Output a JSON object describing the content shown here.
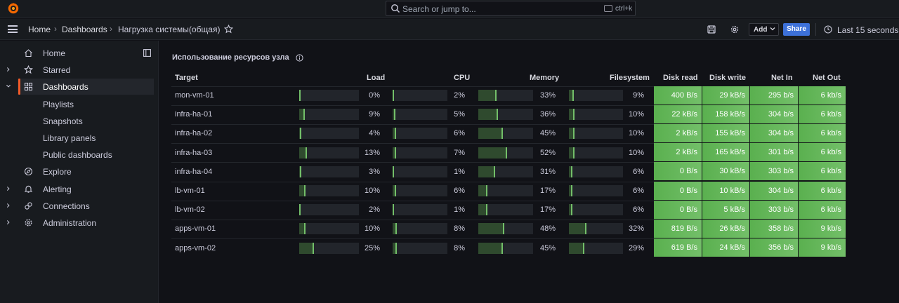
{
  "search": {
    "placeholder": "Search or jump to...",
    "shortcut": "ctrl+k"
  },
  "breadcrumb": {
    "home": "Home",
    "dashboards": "Dashboards",
    "current": "Нагрузка системы(общая)"
  },
  "toolbar": {
    "add_label": "Add",
    "share_label": "Share",
    "time_range": "Last 15 seconds"
  },
  "sidebar": {
    "items": [
      {
        "label": "Home",
        "icon": "home-icon",
        "expandable": false
      },
      {
        "label": "Starred",
        "icon": "star-icon",
        "expandable": true
      },
      {
        "label": "Dashboards",
        "icon": "apps-icon",
        "expandable": true,
        "active": true
      },
      {
        "label": "Playlists",
        "sub": true
      },
      {
        "label": "Snapshots",
        "sub": true
      },
      {
        "label": "Library panels",
        "sub": true
      },
      {
        "label": "Public dashboards",
        "sub": true
      },
      {
        "label": "Explore",
        "icon": "compass-icon",
        "expandable": false
      },
      {
        "label": "Alerting",
        "icon": "bell-icon",
        "expandable": true
      },
      {
        "label": "Connections",
        "icon": "link-icon",
        "expandable": true
      },
      {
        "label": "Administration",
        "icon": "cog-icon",
        "expandable": true
      }
    ]
  },
  "panel": {
    "title": "Использование ресурсов узла",
    "columns": [
      "Target",
      "Load",
      "CPU",
      "Memory",
      "Filesystem",
      "Disk read",
      "Disk write",
      "Net In",
      "Net Out"
    ],
    "rows": [
      {
        "target": "mon-vm-01",
        "load": "0%",
        "load_v": 0.0,
        "cpu": "2%",
        "cpu_v": 0.02,
        "mem": "33%",
        "mem_v": 0.33,
        "fs": "9%",
        "fs_v": 0.09,
        "disk_read": "400 B/s",
        "disk_write": "29 kB/s",
        "net_in": "295 b/s",
        "net_out": "6 kb/s"
      },
      {
        "target": "infra-ha-01",
        "load": "9%",
        "load_v": 0.09,
        "cpu": "5%",
        "cpu_v": 0.05,
        "mem": "36%",
        "mem_v": 0.36,
        "fs": "10%",
        "fs_v": 0.1,
        "disk_read": "22 kB/s",
        "disk_write": "158 kB/s",
        "net_in": "304 b/s",
        "net_out": "6 kb/s"
      },
      {
        "target": "infra-ha-02",
        "load": "4%",
        "load_v": 0.04,
        "cpu": "6%",
        "cpu_v": 0.06,
        "mem": "45%",
        "mem_v": 0.45,
        "fs": "10%",
        "fs_v": 0.1,
        "disk_read": "2 kB/s",
        "disk_write": "155 kB/s",
        "net_in": "304 b/s",
        "net_out": "6 kb/s"
      },
      {
        "target": "infra-ha-03",
        "load": "13%",
        "load_v": 0.13,
        "cpu": "7%",
        "cpu_v": 0.07,
        "mem": "52%",
        "mem_v": 0.52,
        "fs": "10%",
        "fs_v": 0.1,
        "disk_read": "2 kB/s",
        "disk_write": "165 kB/s",
        "net_in": "301 b/s",
        "net_out": "6 kb/s"
      },
      {
        "target": "infra-ha-04",
        "load": "3%",
        "load_v": 0.03,
        "cpu": "1%",
        "cpu_v": 0.01,
        "mem": "31%",
        "mem_v": 0.31,
        "fs": "6%",
        "fs_v": 0.06,
        "disk_read": "0 B/s",
        "disk_write": "30 kB/s",
        "net_in": "303 b/s",
        "net_out": "6 kb/s"
      },
      {
        "target": "lb-vm-01",
        "load": "10%",
        "load_v": 0.1,
        "cpu": "6%",
        "cpu_v": 0.06,
        "mem": "17%",
        "mem_v": 0.17,
        "fs": "6%",
        "fs_v": 0.06,
        "disk_read": "0 B/s",
        "disk_write": "10 kB/s",
        "net_in": "304 b/s",
        "net_out": "6 kb/s"
      },
      {
        "target": "lb-vm-02",
        "load": "2%",
        "load_v": 0.02,
        "cpu": "1%",
        "cpu_v": 0.01,
        "mem": "17%",
        "mem_v": 0.17,
        "fs": "6%",
        "fs_v": 0.06,
        "disk_read": "0 B/s",
        "disk_write": "5 kB/s",
        "net_in": "303 b/s",
        "net_out": "6 kb/s"
      },
      {
        "target": "apps-vm-01",
        "load": "10%",
        "load_v": 0.1,
        "cpu": "8%",
        "cpu_v": 0.08,
        "mem": "48%",
        "mem_v": 0.48,
        "fs": "32%",
        "fs_v": 0.32,
        "disk_read": "819 B/s",
        "disk_write": "26 kB/s",
        "net_in": "358 b/s",
        "net_out": "9 kb/s"
      },
      {
        "target": "apps-vm-02",
        "load": "25%",
        "load_v": 0.25,
        "cpu": "8%",
        "cpu_v": 0.08,
        "mem": "45%",
        "mem_v": 0.45,
        "fs": "29%",
        "fs_v": 0.29,
        "disk_read": "619 B/s",
        "disk_write": "24 kB/s",
        "net_in": "356 b/s",
        "net_out": "9 kb/s"
      }
    ]
  },
  "colors": {
    "accent": "#f05a28",
    "share": "#3d71d9",
    "ok_cell": "#73bf69",
    "gauge_fill": "#2f4a2e"
  }
}
